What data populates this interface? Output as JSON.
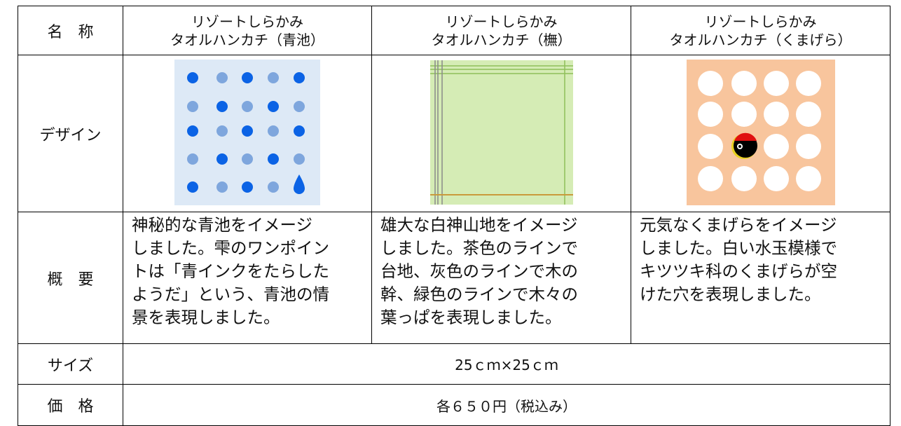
{
  "table": {
    "header": [
      {
        "label": "名　称"
      },
      {
        "lines": [
          "リゾートしらかみ",
          "タオルハンカチ（青池）"
        ]
      },
      {
        "lines": [
          "リゾートしらかみ",
          "タオルハンカチ（橅）"
        ]
      },
      {
        "lines": [
          "リゾートしらかみ",
          "タオルハンカチ（くまげら）"
        ]
      }
    ],
    "design_label": "デザイン",
    "overview_label": "概　要",
    "overview": [
      [
        "神秘的な青池をイメージ",
        "しました。雫のワンポイン",
        "トは「青インクをたらした",
        "ようだ」という、青池の情",
        "景を表現しました。"
      ],
      [
        "雄大な白神山地をイメージ",
        "しました。茶色のラインで",
        "台地、灰色のラインで木の",
        "幹、緑色のラインで木々の",
        "葉っぱを表現しました。"
      ],
      [
        "元気なくまげらをイメージ",
        "しました。白い水玉模様で",
        "キツツキ科のくまげらが空",
        "けた穴を表現しました。"
      ]
    ],
    "size_label": "サイズ",
    "size": "25ｃｍ×25ｃｍ",
    "price_label": "価　格",
    "price": "各６５０円（税込み）"
  }
}
